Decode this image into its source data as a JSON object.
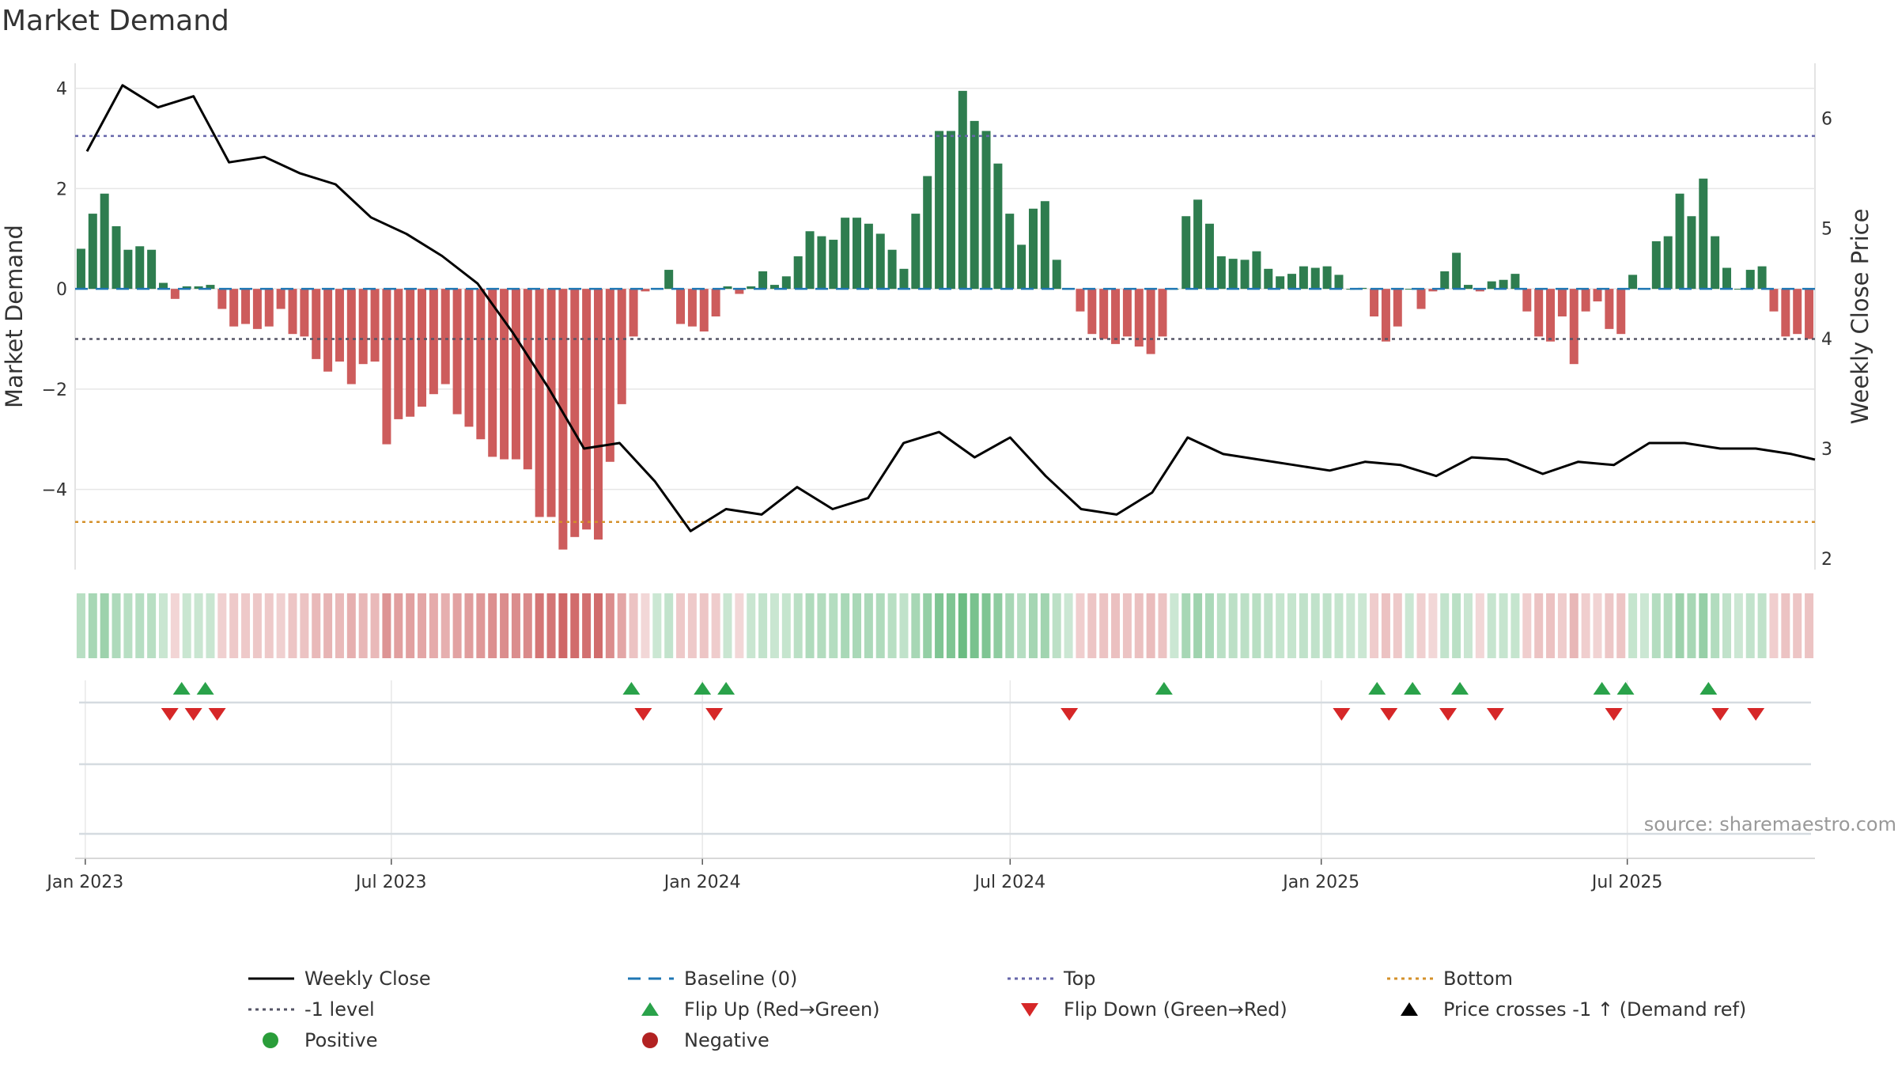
{
  "chart_data": {
    "type": "bar",
    "title": "Market Demand",
    "ylabel": "Market Demand",
    "y2label": "Weekly Close Price",
    "ylim": [
      -5.6,
      4.5
    ],
    "y2lim": [
      1.9,
      6.5
    ],
    "yticks": [
      4,
      2,
      0,
      -2,
      -4
    ],
    "ytick_labels": [
      "4",
      "2",
      "0",
      "−2",
      "−4"
    ],
    "y2ticks": [
      6,
      5,
      4,
      3,
      2
    ],
    "y2tick_labels": [
      "6",
      "5",
      "4",
      "3",
      "2"
    ],
    "x_start": "2022-12-26",
    "x_end": "2025-10-20",
    "xticks": [
      "2023-01-01",
      "2023-07-01",
      "2024-01-01",
      "2024-07-01",
      "2025-01-01",
      "2025-07-01"
    ],
    "xtick_labels": [
      "Jan 2023",
      "Jul 2023",
      "Jan 2024",
      "Jul 2024",
      "Jan 2025",
      "Jul 2025"
    ],
    "reference_lines": {
      "top": 3.05,
      "bottom": -4.65,
      "minus_one": -1.0,
      "baseline": 0
    },
    "grid": true,
    "legend_position": "bottom",
    "source": "source: sharemaestro.com",
    "demand": [
      0.8,
      1.5,
      1.9,
      1.25,
      0.78,
      0.85,
      0.78,
      0.12,
      -0.2,
      0.05,
      0.05,
      0.08,
      -0.4,
      -0.75,
      -0.7,
      -0.8,
      -0.75,
      -0.4,
      -0.9,
      -0.95,
      -1.4,
      -1.65,
      -1.45,
      -1.9,
      -1.5,
      -1.45,
      -3.1,
      -2.6,
      -2.55,
      -2.35,
      -2.1,
      -1.9,
      -2.5,
      -2.75,
      -3.0,
      -3.35,
      -3.4,
      -3.4,
      -3.6,
      -4.55,
      -4.55,
      -5.2,
      -4.95,
      -4.8,
      -5.0,
      -3.45,
      -2.3,
      -0.95,
      -0.05,
      0.0,
      0.38,
      -0.7,
      -0.75,
      -0.85,
      -0.55,
      0.05,
      -0.1,
      0.05,
      0.35,
      0.08,
      0.25,
      0.65,
      1.15,
      1.05,
      0.98,
      1.42,
      1.42,
      1.3,
      1.1,
      0.78,
      0.4,
      1.5,
      2.25,
      3.15,
      3.15,
      3.95,
      3.35,
      3.15,
      2.5,
      1.5,
      0.88,
      1.6,
      1.75,
      0.58,
      0.0,
      -0.45,
      -0.9,
      -1.0,
      -1.1,
      -0.95,
      -1.15,
      -1.3,
      -0.95,
      0.0,
      1.45,
      1.78,
      1.3,
      0.65,
      0.6,
      0.58,
      0.75,
      0.4,
      0.25,
      0.3,
      0.45,
      0.42,
      0.45,
      0.28,
      0.0,
      0.02,
      -0.55,
      -1.05,
      -0.75,
      0.0,
      -0.4,
      -0.05,
      0.35,
      0.72,
      0.08,
      -0.05,
      0.15,
      0.18,
      0.3,
      -0.45,
      -0.95,
      -1.05,
      -0.55,
      -1.5,
      -0.45,
      -0.25,
      -0.8,
      -0.9,
      0.28,
      0.0,
      0.95,
      1.05,
      1.9,
      1.45,
      2.2,
      1.05,
      0.42,
      0.0,
      0.38,
      0.45,
      -0.45,
      -0.95,
      -0.9,
      -1.0
    ],
    "price_x": [
      "2023-01-02",
      "2023-01-23",
      "2023-02-13",
      "2023-03-06",
      "2023-03-27",
      "2023-04-17",
      "2023-05-08",
      "2023-05-29",
      "2023-06-19",
      "2023-07-10",
      "2023-07-31",
      "2023-08-21",
      "2023-09-11",
      "2023-10-02",
      "2023-10-23",
      "2023-11-13",
      "2023-12-04",
      "2023-12-25",
      "2024-01-15",
      "2024-02-05",
      "2024-02-26",
      "2024-03-18",
      "2024-04-08",
      "2024-04-29",
      "2024-05-20",
      "2024-06-10",
      "2024-07-01",
      "2024-07-22",
      "2024-08-12",
      "2024-09-02",
      "2024-09-23",
      "2024-10-14",
      "2024-11-04",
      "2024-11-25",
      "2024-12-16",
      "2025-01-06",
      "2025-01-27",
      "2025-02-17",
      "2025-03-10",
      "2025-03-31",
      "2025-04-21",
      "2025-05-12",
      "2025-06-02",
      "2025-06-23",
      "2025-07-14",
      "2025-08-04",
      "2025-08-25",
      "2025-09-15",
      "2025-10-06",
      "2025-10-20"
    ],
    "price": [
      5.7,
      6.3,
      6.1,
      6.2,
      5.6,
      5.65,
      5.5,
      5.4,
      5.1,
      4.95,
      4.75,
      4.5,
      4.05,
      3.55,
      3.0,
      3.05,
      2.7,
      2.25,
      2.45,
      2.4,
      2.65,
      2.45,
      2.55,
      3.05,
      3.15,
      2.92,
      3.1,
      2.75,
      2.45,
      2.4,
      2.6,
      3.1,
      2.95,
      2.9,
      2.85,
      2.8,
      2.88,
      2.85,
      2.75,
      2.92,
      2.9,
      2.77,
      2.88,
      2.85,
      3.05,
      3.05,
      3.0,
      3.0,
      2.95,
      2.9
    ],
    "flip_up": [
      "2023-02-27",
      "2023-03-13",
      "2023-11-20",
      "2024-01-01",
      "2024-01-15",
      "2024-09-30",
      "2025-02-03",
      "2025-02-24",
      "2025-03-24",
      "2025-06-16",
      "2025-06-30",
      "2025-08-18"
    ],
    "flip_down": [
      "2023-02-20",
      "2023-03-06",
      "2023-03-20",
      "2023-11-27",
      "2024-01-08",
      "2024-08-05",
      "2025-01-13",
      "2025-02-10",
      "2025-03-17",
      "2025-04-14",
      "2025-06-23",
      "2025-08-25",
      "2025-09-15"
    ],
    "series": [
      {
        "name": "Weekly Close",
        "color": "#000000",
        "style": "solid-line"
      },
      {
        "name": "Baseline (0)",
        "color": "#1f77b4",
        "style": "dashed-line"
      },
      {
        "name": "Top",
        "color": "#6666aa",
        "style": "dotted-line"
      },
      {
        "name": "Bottom",
        "color": "#d4902a",
        "style": "dotted-line"
      },
      {
        "name": "-1 level",
        "color": "#555566",
        "style": "dotted-line"
      },
      {
        "name": "Flip Up (Red→Green)",
        "color": "#2aa24a",
        "style": "triangle-up"
      },
      {
        "name": "Flip Down (Green→Red)",
        "color": "#d62728",
        "style": "triangle-down"
      },
      {
        "name": "Price crosses -1 ↑ (Demand ref)",
        "color": "#000000",
        "style": "triangle-up"
      },
      {
        "name": "Positive",
        "color": "#2a9d3a",
        "style": "dot"
      },
      {
        "name": "Negative",
        "color": "#b22222",
        "style": "dot"
      }
    ],
    "colors": {
      "positive_bar": "#2e7d4f",
      "negative_bar": "#cd5c5c",
      "grid": "#e6e6e6"
    }
  }
}
